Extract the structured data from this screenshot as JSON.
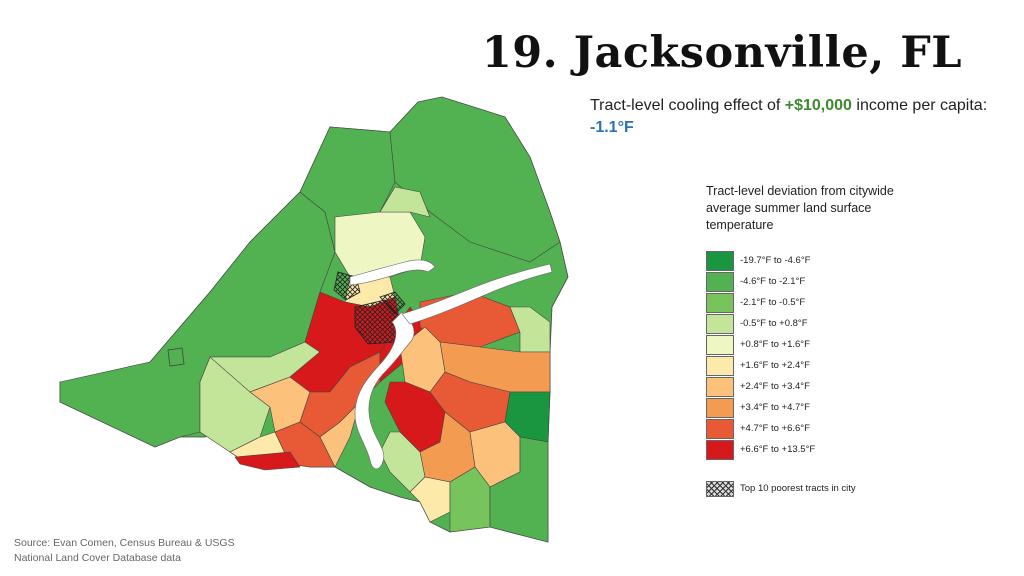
{
  "header": {
    "title": "19. Jacksonville, FL",
    "subtitle_pre": "Tract-level cooling effect of ",
    "subtitle_income": "+$10,000",
    "subtitle_mid": " income per capita: ",
    "subtitle_effect": "-1.1°F"
  },
  "legend": {
    "title": "Tract-level deviation from citywide average summer land surface temperature",
    "items": [
      {
        "label": "-19.7°F to -4.6°F",
        "color": "#1a9641"
      },
      {
        "label": "-4.6°F to -2.1°F",
        "color": "#52b151"
      },
      {
        "label": "-2.1°F to -0.5°F",
        "color": "#77c35c"
      },
      {
        "label": "-0.5°F to +0.8°F",
        "color": "#c2e59a"
      },
      {
        "label": "+0.8°F to +1.6°F",
        "color": "#eef7c4"
      },
      {
        "label": "+1.6°F to +2.4°F",
        "color": "#fde9a9"
      },
      {
        "label": "+2.4°F to +3.4°F",
        "color": "#fcc27c"
      },
      {
        "label": "+3.4°F to +4.7°F",
        "color": "#f49b52"
      },
      {
        "label": "+4.7°F to +6.6°F",
        "color": "#e85a36"
      },
      {
        "label": "+6.6°F to +13.5°F",
        "color": "#d7191c"
      }
    ],
    "hatch_label": "Top 10 poorest tracts in city"
  },
  "source": {
    "line1": "Source: Evan Comen, Census Bureau & USGS",
    "line2": "National Land Cover Database data"
  },
  "colors": {
    "income_highlight": "#3d8a2e",
    "effect_highlight": "#2a72b8",
    "water": "#ffffff",
    "tract_border": "#444444"
  }
}
